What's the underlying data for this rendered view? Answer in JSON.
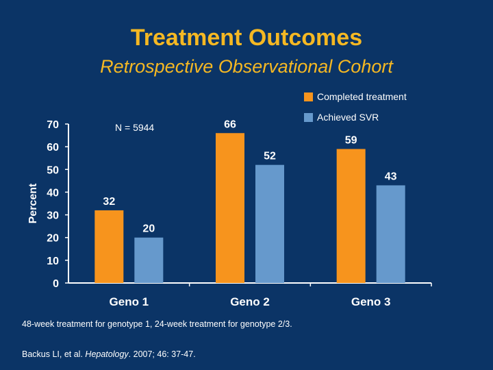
{
  "slide": {
    "title": "Treatment Outcomes",
    "subtitle": "Retrospective Observational Cohort",
    "n_note": "N = 5944",
    "footnote": "48-week treatment for genotype 1, 24-week treatment for genotype 2/3.",
    "citation_authors": "Backus LI, et al. ",
    "citation_journal": "Hepatology",
    "citation_rest": ". 2007; 46: 37-47."
  },
  "colors": {
    "background": "#0b3466",
    "title": "#f5b823",
    "series_completed": "#f7941d",
    "series_svr": "#6699cc"
  },
  "chart_data": {
    "type": "bar",
    "title": "",
    "xlabel": "",
    "ylabel": "Percent",
    "ylim": [
      0,
      70
    ],
    "yticks": [
      0,
      10,
      20,
      30,
      40,
      50,
      60,
      70
    ],
    "categories": [
      "Geno 1",
      "Geno 2",
      "Geno 3"
    ],
    "series": [
      {
        "name": "Completed treatment",
        "values": [
          32,
          66,
          59
        ]
      },
      {
        "name": "Achieved SVR",
        "values": [
          20,
          52,
          43
        ]
      }
    ],
    "legend_position": "top-right",
    "grid": false
  }
}
